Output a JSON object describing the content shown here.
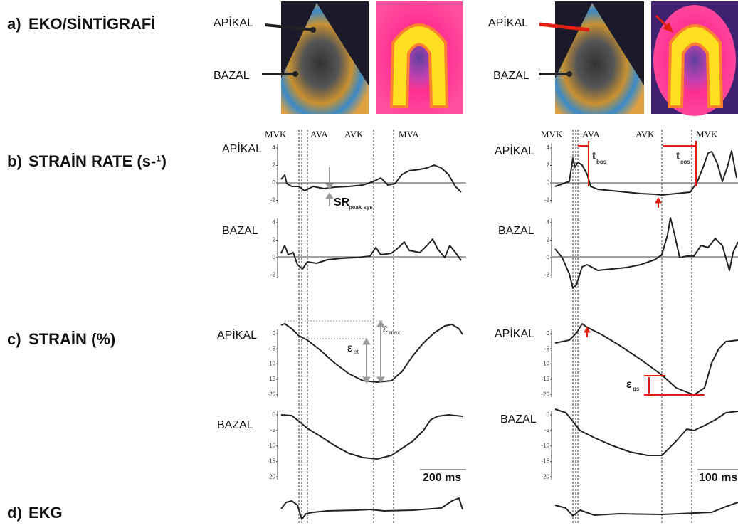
{
  "panels": [
    {
      "label": "a)",
      "title": "EKO/SİNTİGRAFİ"
    },
    {
      "label": "b)",
      "title": "STRAİN RATE (s-¹)"
    },
    {
      "label": "c)",
      "title": "STRAİN (%)"
    },
    {
      "label": "d)",
      "title": "EKG"
    }
  ],
  "image_labels": {
    "apical": "APİKAL",
    "basal": "BAZAL"
  },
  "left": {
    "events": [
      "MVK",
      "AVA",
      "AVK",
      "MVA"
    ],
    "scale": "200 ms"
  },
  "right": {
    "events": [
      "MVK",
      "AVA",
      "AVK",
      "MVK"
    ],
    "scale": "100 ms"
  },
  "strain_rate_ticks": [
    "4",
    "2",
    "0",
    "-2"
  ],
  "strain_ticks": [
    "0",
    "-5",
    "-10",
    "-15",
    "-20"
  ],
  "annotations": {
    "sr": "SR",
    "sr_sub": "peak sys",
    "epsilon": "ε",
    "et": "et",
    "max": "max",
    "t": "t",
    "bos": "bos",
    "eos": "eos",
    "ps": "ps"
  }
}
